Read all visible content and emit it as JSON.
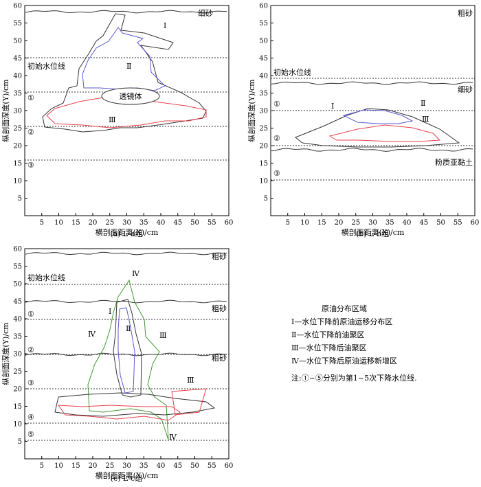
{
  "axes": {
    "x_ticks": [
      "5",
      "10",
      "15",
      "20",
      "25",
      "30",
      "35",
      "40",
      "45",
      "50",
      "55",
      "60"
    ],
    "y_ticks": [
      "5",
      "10",
      "15",
      "20",
      "25",
      "30",
      "35",
      "40",
      "45",
      "50",
      "55",
      "60"
    ],
    "xlabel": "横剖面距离(X)/cm",
    "ylabel": "纵剖面深度(Y)/cm"
  },
  "panel_a": {
    "caption": "(a)  L-a组",
    "top_layer": "细砂",
    "water_line": "初始水位线",
    "lens": "透镜体",
    "circles": [
      "①",
      "②",
      "③"
    ],
    "zone_labels": [
      "Ⅰ",
      "Ⅱ",
      "Ⅲ"
    ]
  },
  "panel_b": {
    "caption": "(b)  L-b组",
    "top_layer": "粗砂",
    "water_line": "初始水位线",
    "mid_layer": "细砂",
    "bottom_layer": "粉质亚黏土",
    "circles": [
      "①",
      "②",
      "③"
    ],
    "zone_labels": [
      "Ⅰ",
      "Ⅱ",
      "Ⅲ"
    ]
  },
  "panel_c": {
    "caption": "(c)  L-c组",
    "top_layer": "粗砂",
    "water_line": "初始水位线",
    "mid_layer": "粗砂",
    "low_layer": "粗砂",
    "circles": [
      "①",
      "②",
      "③",
      "④",
      "⑤"
    ],
    "zone_labels": [
      "Ⅰ",
      "Ⅱ",
      "Ⅲ",
      "Ⅳ"
    ]
  },
  "legend": {
    "title": "原油分布区域",
    "items": [
      "Ⅰ—水位下降前原油运移分布区",
      "Ⅱ—水位下降前油聚区",
      "Ⅲ—水位下降后油聚区",
      "Ⅳ—水位下降后原油运移新增区"
    ],
    "note": "注:①~⑤分别为第1~5次下降水位线."
  },
  "colors": {
    "zone1": "#333333",
    "zone2": "#5a5ad0",
    "zone3": "#e8404a",
    "zone4": "#3f9a30",
    "dotted": "#333333"
  }
}
